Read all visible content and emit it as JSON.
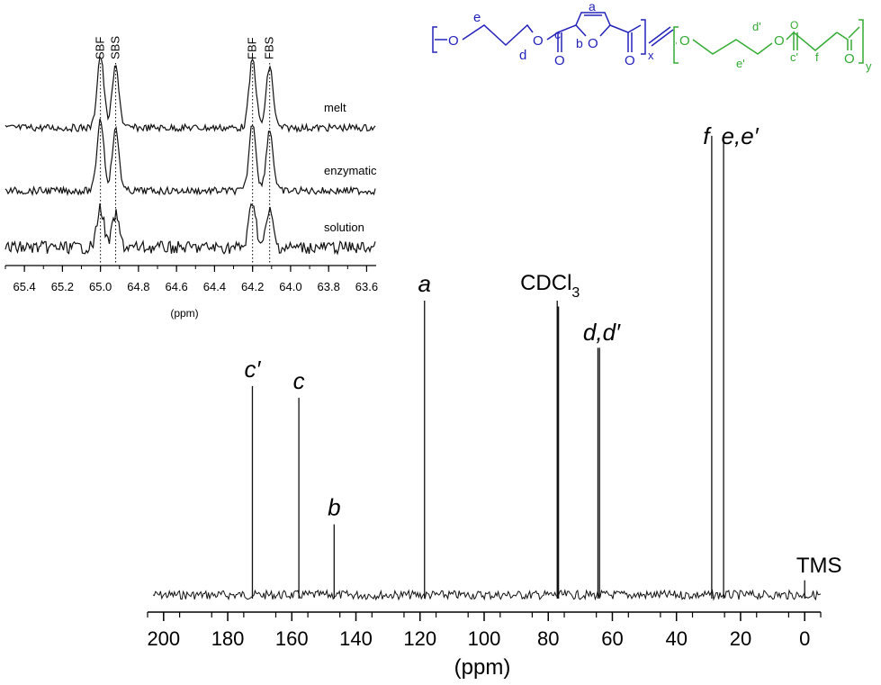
{
  "chart_data": [
    {
      "type": "line",
      "panel": "main-13C-NMR-spectrum",
      "xlabel": "(ppm)",
      "xlim": [
        205,
        -5
      ],
      "x_reversed": true,
      "x_ticks": [
        200,
        180,
        160,
        140,
        120,
        100,
        80,
        60,
        40,
        20,
        0
      ],
      "peaks": [
        {
          "label": "c′",
          "x": 172.3,
          "height": 0.71
        },
        {
          "label": "c",
          "x": 157.8,
          "height": 0.67
        },
        {
          "label": "b",
          "x": 146.8,
          "height": 0.24
        },
        {
          "label": "a",
          "x": 118.6,
          "height": 1.0
        },
        {
          "label": "CDCl",
          "label_sub": "3",
          "x": 77.2,
          "height": 1.0
        },
        {
          "label": "",
          "x": 77.0,
          "height": 0.98
        },
        {
          "label": "",
          "x": 76.8,
          "height": 0.98
        },
        {
          "label": "d,d′",
          "x": 64.5,
          "height": 0.84
        },
        {
          "label": "",
          "x": 64.0,
          "height": 0.84
        },
        {
          "label": "f",
          "x": 29.0,
          "height": 1.56
        },
        {
          "label": "e,e′",
          "x": 25.3,
          "height": 1.55
        },
        {
          "label": "TMS",
          "x": 0.0,
          "height": 0.05
        }
      ]
    },
    {
      "type": "line",
      "panel": "inset-expansion",
      "xlabel": "(ppm)",
      "xlim": [
        65.5,
        63.55
      ],
      "x_reversed": true,
      "x_tick_labels": [
        "65.4",
        "65.2",
        "65.0",
        "64.8",
        "64.6",
        "64.4",
        "64.2",
        "64.0",
        "63.8",
        "63.6"
      ],
      "x_ticks": [
        65.4,
        65.2,
        65.0,
        64.8,
        64.6,
        64.4,
        64.2,
        64.0,
        63.8,
        63.6
      ],
      "reference_lines": [
        {
          "label": "SBF",
          "x": 65.0
        },
        {
          "label": "SBS",
          "x": 64.92
        },
        {
          "label": "FBF",
          "x": 64.2
        },
        {
          "label": "FBS",
          "x": 64.11
        }
      ],
      "series": [
        {
          "name": "melt",
          "peaks": [
            {
              "x": 65.0,
              "h": 1.0
            },
            {
              "x": 64.92,
              "h": 0.85
            },
            {
              "x": 64.2,
              "h": 0.95
            },
            {
              "x": 64.11,
              "h": 0.85
            }
          ]
        },
        {
          "name": "enzymatic",
          "peaks": [
            {
              "x": 65.0,
              "h": 1.0
            },
            {
              "x": 64.92,
              "h": 0.85
            },
            {
              "x": 64.2,
              "h": 0.95
            },
            {
              "x": 64.11,
              "h": 0.85
            }
          ]
        },
        {
          "name": "solution",
          "peaks": [
            {
              "x": 65.0,
              "h": 0.55
            },
            {
              "x": 64.92,
              "h": 0.45
            },
            {
              "x": 64.2,
              "h": 0.65
            },
            {
              "x": 64.11,
              "h": 0.5
            }
          ]
        }
      ]
    }
  ],
  "structure": {
    "blue_labels": {
      "e": "e",
      "d": "d",
      "c": "c",
      "b": "b",
      "a": "a",
      "x": "x",
      "o": "O"
    },
    "green_labels": {
      "d_prime": "d'",
      "e_prime": "e'",
      "c_prime": "c'",
      "f": "f",
      "y": "y",
      "o": "O"
    },
    "colors": {
      "block1": "#2222bb",
      "block2": "#33aa33"
    }
  }
}
